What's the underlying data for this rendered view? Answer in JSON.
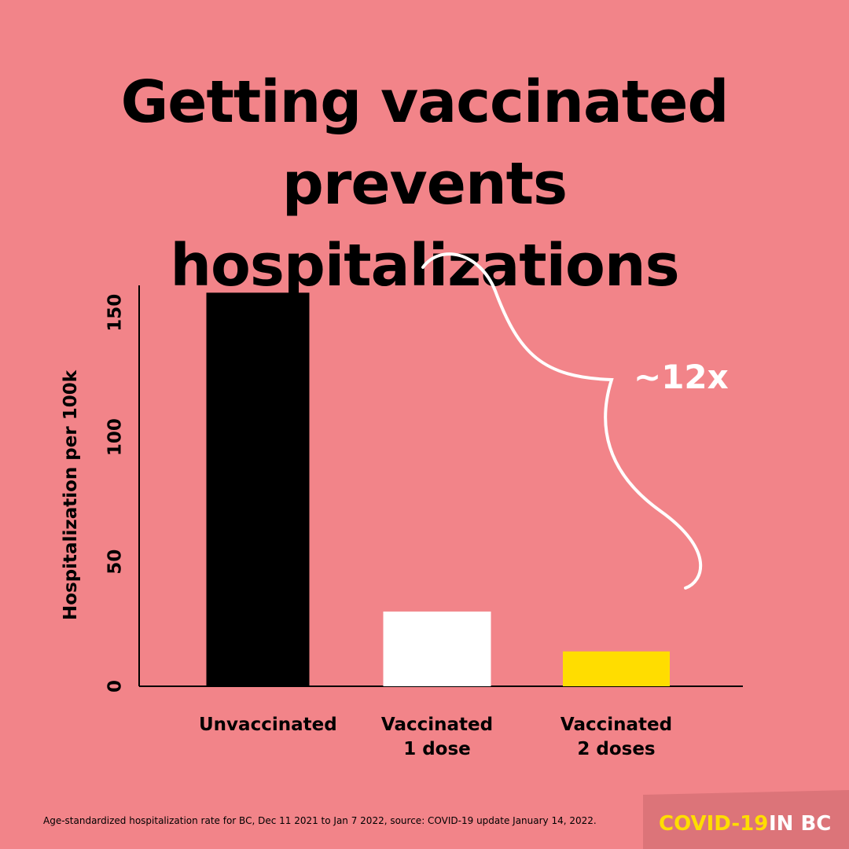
{
  "chart_data": {
    "type": "bar",
    "title": "Getting vaccinated prevents hospitalizations",
    "ylabel": "Hospitalization per 100k",
    "categories": [
      "Unvaccinated",
      "Vaccinated 1 dose",
      "Vaccinated 2 doses"
    ],
    "values": [
      158,
      30,
      14
    ],
    "colors": [
      "#000000",
      "#ffffff",
      "#ffdd00"
    ],
    "ylim": [
      0,
      160
    ],
    "yticks": [
      0,
      50,
      100,
      150
    ],
    "annotation": "~12x",
    "footnote": "Age-standardized hospitalization rate for BC, Dec 11 2021 to Jan 7 2022, source: COVID-19 update January 14, 2022.",
    "brand": {
      "highlight": "COVID-19",
      "rest": "IN BC"
    }
  }
}
